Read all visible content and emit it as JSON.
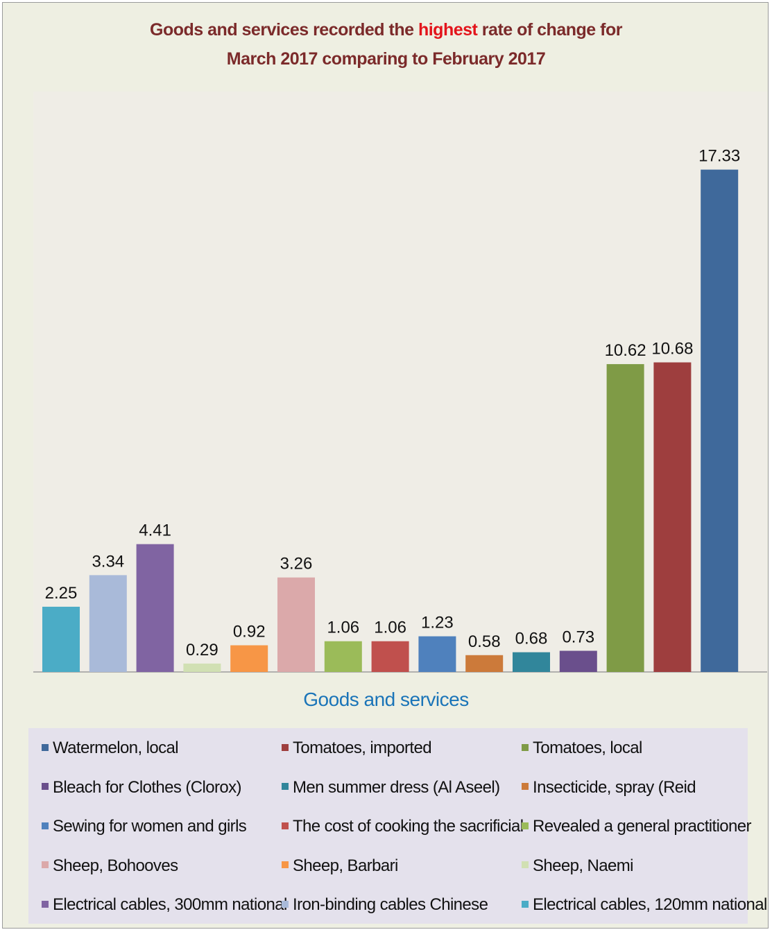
{
  "title": {
    "line1_prefix": "Goods and services recorded the ",
    "line1_highlight": "highest",
    "line1_suffix": " rate of change for",
    "line2": "March 2017 comparing to February 2017"
  },
  "chart_data": {
    "type": "bar",
    "xlabel": "Goods and services",
    "ylabel": "",
    "ylim": [
      0,
      18
    ],
    "grid": false,
    "legend_position": "bottom",
    "series": [
      {
        "name": "Electrical cables, 120mm national",
        "value": 2.25,
        "color": "#4bacc6"
      },
      {
        "name": "Iron-binding cables Chinese",
        "value": 3.34,
        "color": "#a9bad9"
      },
      {
        "name": "Electrical cables, 300mm national",
        "value": 4.41,
        "color": "#8064a2"
      },
      {
        "name": "Sheep, Naemi",
        "value": 0.29,
        "color": "#d1e0b3"
      },
      {
        "name": "Sheep, Barbari",
        "value": 0.92,
        "color": "#f79646"
      },
      {
        "name": "Sheep, Bohooves",
        "value": 3.26,
        "color": "#dba9aa"
      },
      {
        "name": "Revealed a general practitioner",
        "value": 1.06,
        "color": "#9bbb59"
      },
      {
        "name": "The cost of cooking the sacrificial",
        "value": 1.06,
        "color": "#c0504d"
      },
      {
        "name": "Sewing for women and girls",
        "value": 1.23,
        "color": "#4f81bd"
      },
      {
        "name": "Insecticide, spray (Reid",
        "value": 0.58,
        "color": "#cc7a3a"
      },
      {
        "name": "Men summer dress (Al Aseel)",
        "value": 0.68,
        "color": "#31869b"
      },
      {
        "name": "Bleach for Clothes (Clorox)",
        "value": 0.73,
        "color": "#6a4f8c"
      },
      {
        "name": "Tomatoes, local",
        "value": 10.62,
        "color": "#7f9b46"
      },
      {
        "name": "Tomatoes, imported",
        "value": 10.68,
        "color": "#9e3e3e"
      },
      {
        "name": "Watermelon, local",
        "value": 17.33,
        "color": "#3f699b"
      }
    ],
    "legend_order": [
      "Watermelon, local",
      "Tomatoes, imported",
      "Tomatoes, local",
      "Bleach for Clothes (Clorox)",
      "Men summer dress (Al Aseel)",
      "Insecticide, spray (Reid",
      "Sewing for women and girls",
      "The cost of cooking the sacrificial",
      "Revealed a general practitioner",
      "Sheep, Bohooves",
      "Sheep, Barbari",
      "Sheep, Naemi",
      "Electrical cables, 300mm national",
      "Iron-binding cables Chinese",
      "Electrical cables, 120mm national"
    ]
  }
}
